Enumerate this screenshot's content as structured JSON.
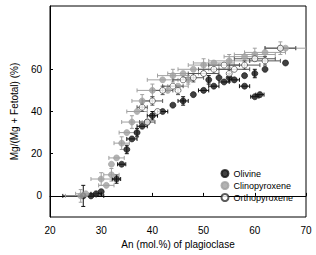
{
  "chart_data": {
    "type": "scatter",
    "x_label": "An (mol.%) of plagioclase",
    "y_label": "Mg/(Mg + Fetotal) (%)",
    "xlim": [
      20,
      70
    ],
    "xticks": [
      20,
      30,
      40,
      50,
      60,
      70
    ],
    "ylim": [
      -10,
      90
    ],
    "yticks": [
      0,
      20,
      40,
      60
    ],
    "legend": "lower right",
    "series": [
      {
        "name": "Olivine",
        "color": "#111111",
        "marker": "circle",
        "x": [
          26.5,
          28,
          29,
          30,
          33,
          34,
          35,
          36,
          37,
          38,
          39,
          40,
          42,
          44,
          46,
          48,
          50,
          51,
          52,
          53,
          54,
          55,
          56,
          58,
          58,
          60,
          60,
          61,
          62,
          66
        ],
        "y": [
          0,
          0,
          1,
          2,
          8,
          15,
          22,
          27,
          30,
          33,
          35,
          38,
          40,
          43,
          45,
          48,
          50,
          55,
          52,
          56,
          54,
          56,
          55,
          57,
          52,
          58,
          47,
          48,
          60,
          63
        ],
        "x_err": [
          4,
          null,
          1,
          null,
          0.8,
          0.8,
          null,
          1,
          null,
          1,
          null,
          1,
          1,
          null,
          1,
          null,
          1,
          null,
          1,
          null,
          1,
          null,
          1,
          null,
          1,
          null,
          0.8,
          0.8,
          null,
          null
        ],
        "y_err": [
          5,
          null,
          null,
          null,
          2,
          null,
          2,
          null,
          2,
          null,
          null,
          2,
          null,
          null,
          2,
          null,
          null,
          2,
          null,
          null,
          null,
          2,
          null,
          null,
          null,
          2,
          null,
          null,
          null,
          null
        ]
      },
      {
        "name": "Clinopyroxene",
        "color": "#a0a0a0",
        "marker": "circle",
        "x": [
          26,
          27,
          30,
          31,
          32,
          32,
          33,
          34,
          35,
          36,
          37,
          38,
          40,
          42,
          43,
          44,
          45,
          46,
          47,
          48,
          50,
          52,
          55,
          58,
          60,
          62,
          65,
          66
        ],
        "y": [
          0,
          1,
          8,
          5,
          10,
          15,
          18,
          25,
          30,
          35,
          40,
          45,
          50,
          55,
          50,
          57,
          52,
          58,
          55,
          60,
          62,
          63,
          64,
          66,
          67,
          68,
          70,
          70
        ],
        "x_err": [
          3,
          2,
          2,
          1.5,
          1.5,
          null,
          1.5,
          1.5,
          1.5,
          2,
          2,
          2,
          3,
          3,
          null,
          3,
          2,
          3,
          null,
          3,
          3,
          4,
          4,
          4,
          4,
          4,
          3,
          4
        ],
        "y_err": [
          3,
          null,
          3,
          null,
          3,
          null,
          null,
          3,
          null,
          3,
          null,
          3,
          3,
          null,
          null,
          3,
          null,
          null,
          2,
          null,
          3,
          null,
          3,
          null,
          3,
          null,
          3,
          null
        ]
      },
      {
        "name": "Orthopyroxene",
        "color": "#ffffff",
        "marker": "circle",
        "x": [
          38,
          39,
          40,
          41,
          42,
          44,
          45,
          46,
          48,
          50,
          52,
          54,
          55,
          56,
          58,
          60,
          62,
          65
        ],
        "y": [
          42,
          35,
          45,
          40,
          50,
          52,
          50,
          55,
          56,
          58,
          60,
          62,
          58,
          60,
          62,
          65,
          64,
          70
        ],
        "x_err": [
          1,
          1.5,
          2,
          null,
          2,
          2,
          null,
          2,
          2,
          3,
          3,
          3,
          null,
          3,
          3,
          4,
          3,
          3
        ],
        "y_err": [
          2,
          null,
          2,
          null,
          2,
          null,
          2,
          null,
          2,
          null,
          2,
          null,
          2,
          null,
          2,
          null,
          2,
          null
        ]
      }
    ]
  }
}
